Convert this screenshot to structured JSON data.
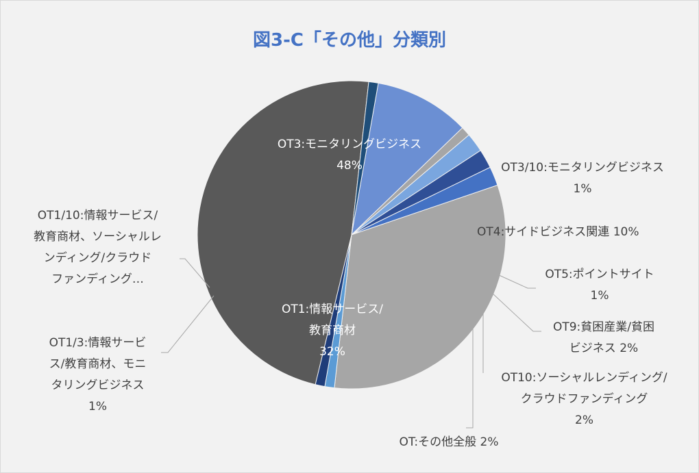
{
  "chart_data": {
    "type": "pie",
    "title": "図3-C「その他」分類別",
    "slices": [
      {
        "label": "OT4:サイドビジネス関連 10%",
        "value": 10,
        "color": "#6b8fd3"
      },
      {
        "label": "OT5:ポイントサイト\n1%",
        "value": 1,
        "color": "#a6a6a6"
      },
      {
        "label": "OT9:貧困産業/貧困\nビジネス 2%",
        "value": 2,
        "color": "#7aa6df"
      },
      {
        "label": "OT10:ソーシャルレンディング/\nクラウドファンディング\n2%",
        "value": 2,
        "color": "#2f4f96"
      },
      {
        "label": "OT:その他全般 2%",
        "value": 2,
        "color": "#4472c4"
      },
      {
        "label": "OT1:情報サービス/\n教育商材\n32%",
        "value": 32,
        "color": "#a6a6a6"
      },
      {
        "label": "OT1/3:情報サービ\nス/教育商材、モニ\nタリングビジネス\n1%",
        "value": 1,
        "color": "#5b9bd5"
      },
      {
        "label": "OT1/10:情報サービス/\n教育商材、ソーシャルレ\nンディング/クラウド\nファンディング…",
        "value": 1,
        "color": "#1f3d7a"
      },
      {
        "label": "OT3:モニタリングビジネス\n48%",
        "value": 48,
        "color": "#595959"
      },
      {
        "label": "OT3/10:モニタリングビジネス\n1%",
        "value": 1,
        "color": "#1f4e79"
      }
    ]
  }
}
